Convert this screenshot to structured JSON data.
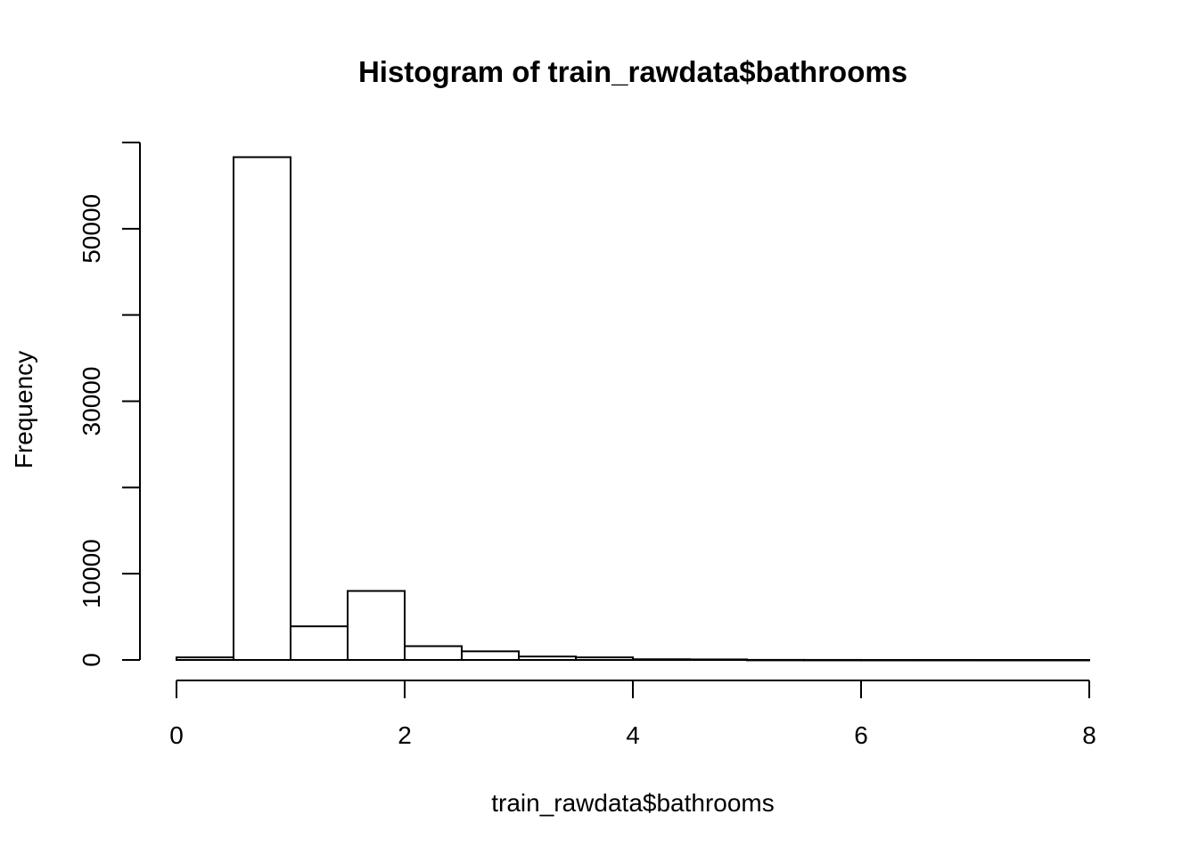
{
  "chart_data": {
    "type": "bar",
    "title": "Histogram of train_rawdata$bathrooms",
    "xlabel": "train_rawdata$bathrooms",
    "ylabel": "Frequency",
    "bins": [
      {
        "from": 0.0,
        "to": 0.5,
        "count": 300
      },
      {
        "from": 0.5,
        "to": 1.0,
        "count": 58300
      },
      {
        "from": 1.0,
        "to": 1.5,
        "count": 3900
      },
      {
        "from": 1.5,
        "to": 2.0,
        "count": 8000
      },
      {
        "from": 2.0,
        "to": 2.5,
        "count": 1600
      },
      {
        "from": 2.5,
        "to": 3.0,
        "count": 1000
      },
      {
        "from": 3.0,
        "to": 3.5,
        "count": 400
      },
      {
        "from": 3.5,
        "to": 4.0,
        "count": 300
      },
      {
        "from": 4.0,
        "to": 4.5,
        "count": 80
      },
      {
        "from": 4.5,
        "to": 5.0,
        "count": 60
      },
      {
        "from": 5.0,
        "to": 5.5,
        "count": 10
      },
      {
        "from": 5.5,
        "to": 6.0,
        "count": 5
      },
      {
        "from": 6.0,
        "to": 6.5,
        "count": 3
      },
      {
        "from": 6.5,
        "to": 7.0,
        "count": 2
      },
      {
        "from": 7.0,
        "to": 7.5,
        "count": 1
      },
      {
        "from": 7.5,
        "to": 8.0,
        "count": 1
      }
    ],
    "xlim": [
      0,
      8
    ],
    "ylim": [
      0,
      60000
    ],
    "x_ticks": [
      0,
      2,
      4,
      6,
      8
    ],
    "x_tick_labels": [
      "0",
      "2",
      "4",
      "6",
      "8"
    ],
    "y_ticks": [
      0,
      10000,
      20000,
      30000,
      40000,
      50000,
      60000
    ],
    "y_tick_labels": [
      "0",
      "10000",
      "",
      "30000",
      "",
      "50000",
      ""
    ],
    "grid": false,
    "colors": {
      "bar_fill": "#ffffff",
      "bar_stroke": "#000000"
    }
  }
}
